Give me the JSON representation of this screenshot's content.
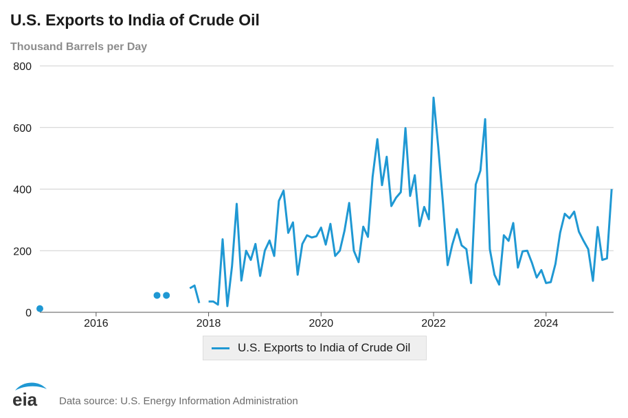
{
  "header": {
    "title": "U.S. Exports to India of Crude Oil",
    "subtitle": "Thousand Barrels per Day"
  },
  "legend": {
    "label": "U.S. Exports to India of Crude Oil"
  },
  "footer": {
    "logo_text": "eia",
    "source": "Data source: U.S. Energy Information Administration"
  },
  "colors": {
    "series": "#1f98d3",
    "grid": "#cfcfcf",
    "text": "#1a1a1a"
  },
  "chart_data": {
    "type": "line",
    "title": "U.S. Exports to India of Crude Oil",
    "ylabel": "Thousand Barrels per Day",
    "xlabel": "",
    "xlim": [
      2015.0,
      2025.2
    ],
    "ylim": [
      0,
      800
    ],
    "yticks": [
      0,
      200,
      400,
      600,
      800
    ],
    "xticks": [
      2016,
      2018,
      2020,
      2022,
      2024
    ],
    "grid": true,
    "legend_position": "bottom",
    "series": [
      {
        "name": "U.S. Exports to India of Crude Oil",
        "start": 2015.0,
        "step": 0.08333,
        "values": [
          12,
          null,
          null,
          null,
          null,
          null,
          null,
          null,
          null,
          null,
          null,
          null,
          null,
          null,
          null,
          null,
          null,
          null,
          null,
          null,
          null,
          null,
          null,
          null,
          null,
          55,
          null,
          55,
          null,
          null,
          null,
          null,
          78,
          87,
          30,
          null,
          35,
          35,
          25,
          237,
          20,
          150,
          352,
          103,
          200,
          170,
          222,
          118,
          200,
          233,
          183,
          362,
          395,
          258,
          292,
          122,
          222,
          250,
          243,
          247,
          275,
          220,
          287,
          183,
          200,
          265,
          355,
          200,
          163,
          278,
          245,
          440,
          562,
          413,
          505,
          345,
          372,
          390,
          598,
          378,
          445,
          280,
          342,
          302,
          697,
          538,
          355,
          153,
          220,
          270,
          217,
          205,
          95,
          415,
          460,
          627,
          205,
          122,
          90,
          250,
          232,
          290,
          145,
          198,
          200,
          160,
          113,
          137,
          95,
          98,
          157,
          258,
          320,
          305,
          327,
          262,
          232,
          205,
          102,
          277,
          170,
          175,
          400
        ]
      }
    ]
  }
}
